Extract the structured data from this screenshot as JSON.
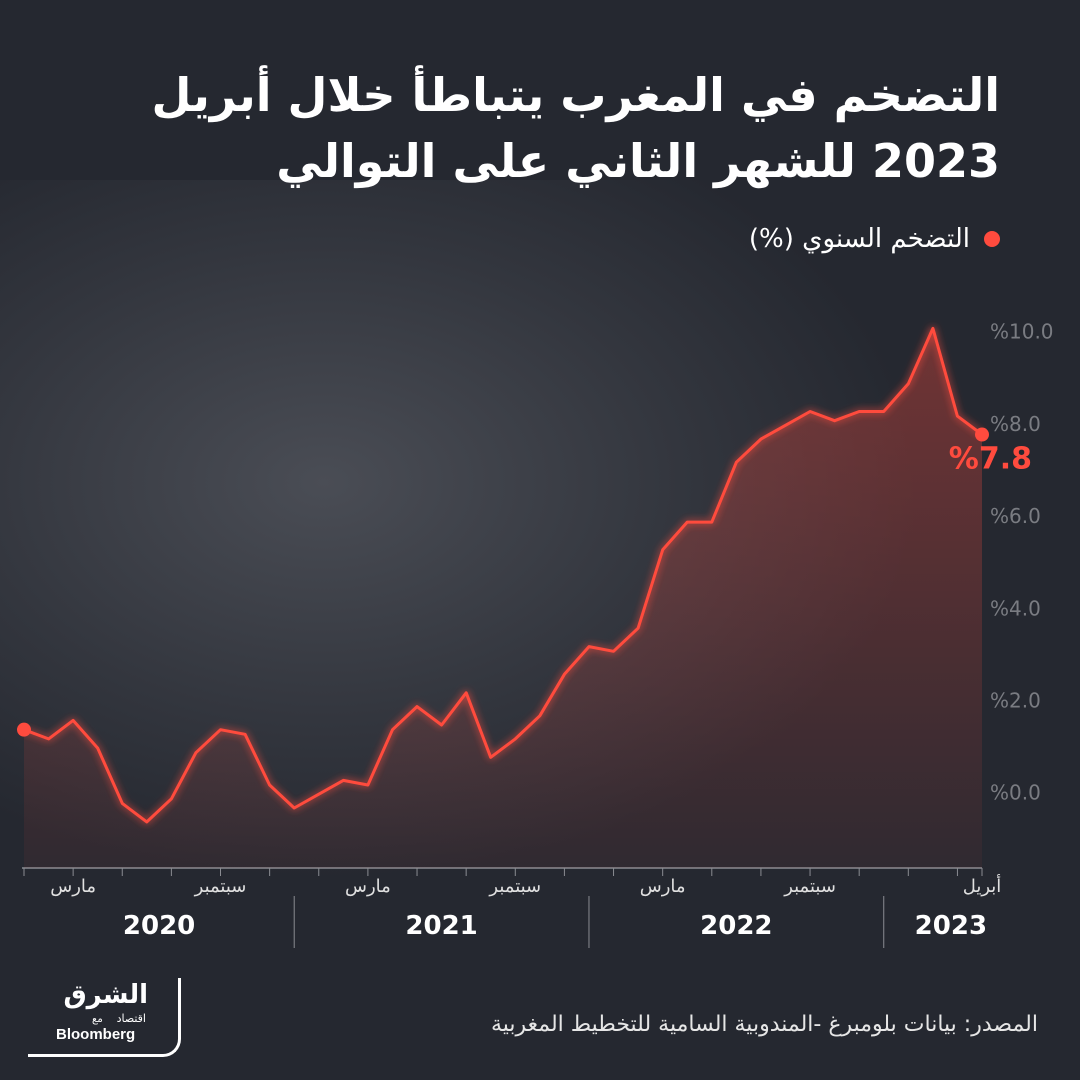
{
  "chart_data": {
    "type": "line",
    "title": [
      "التضخم في المغرب يتباطأ خلال أبريل",
      "2023 للشهر الثاني على التوالي"
    ],
    "categories": [
      null,
      null,
      "مارس",
      null,
      null,
      null,
      null,
      null,
      "سبتمبر",
      null,
      null,
      null,
      null,
      null,
      "مارس",
      null,
      null,
      null,
      null,
      null,
      "سبتمبر",
      null,
      null,
      null,
      null,
      null,
      "مارس",
      null,
      null,
      null,
      null,
      null,
      "سبتمبر",
      null,
      null,
      null,
      null,
      null,
      null,
      "أبريل"
    ],
    "years": [
      "2020",
      "2021",
      "2022",
      "2023"
    ],
    "series": [
      {
        "name": "التضخم السنوي (%)",
        "color": "#ff4b3e",
        "values": [
          1.4,
          1.2,
          1.6,
          1.0,
          -0.2,
          -0.6,
          -0.1,
          0.9,
          1.4,
          1.3,
          0.2,
          -0.3,
          0.0,
          0.3,
          0.2,
          1.4,
          1.9,
          1.5,
          2.2,
          0.8,
          1.2,
          1.7,
          2.6,
          3.2,
          3.1,
          3.6,
          5.3,
          5.9,
          5.9,
          7.2,
          7.7,
          8.0,
          8.3,
          8.1,
          8.3,
          8.3,
          8.9,
          10.1,
          8.2,
          7.8
        ],
        "value_labels": [
          null,
          null,
          null,
          null,
          null,
          null,
          null,
          null,
          null,
          null,
          null,
          null,
          null,
          null,
          null,
          null,
          null,
          null,
          null,
          null,
          null,
          null,
          null,
          null,
          null,
          null,
          null,
          null,
          null,
          null,
          null,
          null,
          null,
          null,
          null,
          null,
          null,
          null,
          null,
          "%7.8"
        ]
      }
    ],
    "ylim": [
      -1.6,
      10.5
    ],
    "yticks": [
      {
        "value": 0,
        "label": "%0.0"
      },
      {
        "value": 2,
        "label": "%2.0"
      },
      {
        "value": 4,
        "label": "%4.0"
      },
      {
        "value": 6,
        "label": "%6.0"
      },
      {
        "value": 8,
        "label": "%8.0"
      },
      {
        "value": 10,
        "label": "%10.0"
      }
    ],
    "source": "المصدر: بيانات بلومبرغ -المندوبية السامية للتخطيط المغربية",
    "logo": {
      "brand": "الشرق",
      "sub": "اقتصاد",
      "partner_prefix": "مع",
      "partner": "Bloomberg"
    }
  }
}
